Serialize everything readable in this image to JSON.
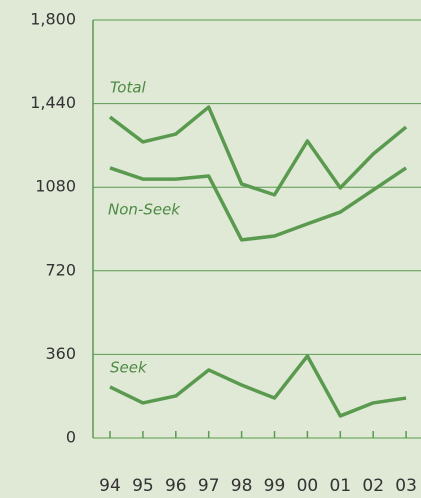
{
  "chart_data": {
    "type": "line",
    "categories": [
      "94",
      "95",
      "96",
      "97",
      "98",
      "99",
      "00",
      "01",
      "02",
      "03"
    ],
    "series": [
      {
        "name": "Total",
        "color": "#5a9a4f",
        "values": [
          1382,
          1275,
          1309,
          1425,
          1094,
          1047,
          1279,
          1077,
          1223,
          1339
        ]
      },
      {
        "name": "Non-Seek",
        "color": "#5a9a4f",
        "values": [
          1163,
          1115,
          1115,
          1128,
          853,
          870,
          922,
          973,
          1068,
          1163
        ]
      },
      {
        "name": "Seek",
        "color": "#5a9a4f",
        "values": [
          220,
          151,
          181,
          293,
          228,
          172,
          353,
          95,
          151,
          172
        ]
      }
    ],
    "ylim": [
      0,
      1800
    ],
    "yticks": [
      0,
      360,
      720,
      1080,
      {
        "value": 1440,
        "label": "1,440"
      },
      {
        "value": 1800,
        "label": "1,800"
      }
    ],
    "grid": true
  }
}
